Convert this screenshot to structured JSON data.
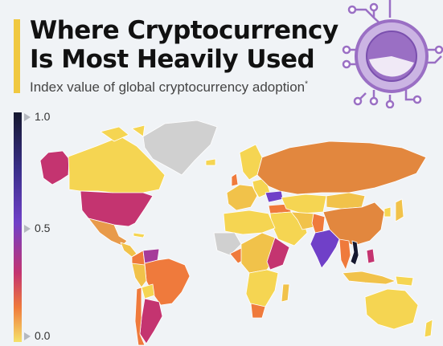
{
  "header": {
    "title_line1": "Where Cryptocurrency",
    "title_line2": "Is Most Heavily Used",
    "subtitle": "Index value of global cryptocurrency adoption",
    "subtitle_mark": "*"
  },
  "legend": {
    "max_label": "1.0",
    "mid_label": "0.5",
    "min_label": "0.0"
  },
  "colors": {
    "background": "#f0f3f6",
    "accent": "#f0c840",
    "no_data": "#d0d0d0",
    "scale_low": "#f5e26a",
    "scale_mid_low": "#ef7a3c",
    "scale_mid": "#c43470",
    "scale_mid_high": "#7040c8",
    "scale_high": "#15182f"
  }
}
